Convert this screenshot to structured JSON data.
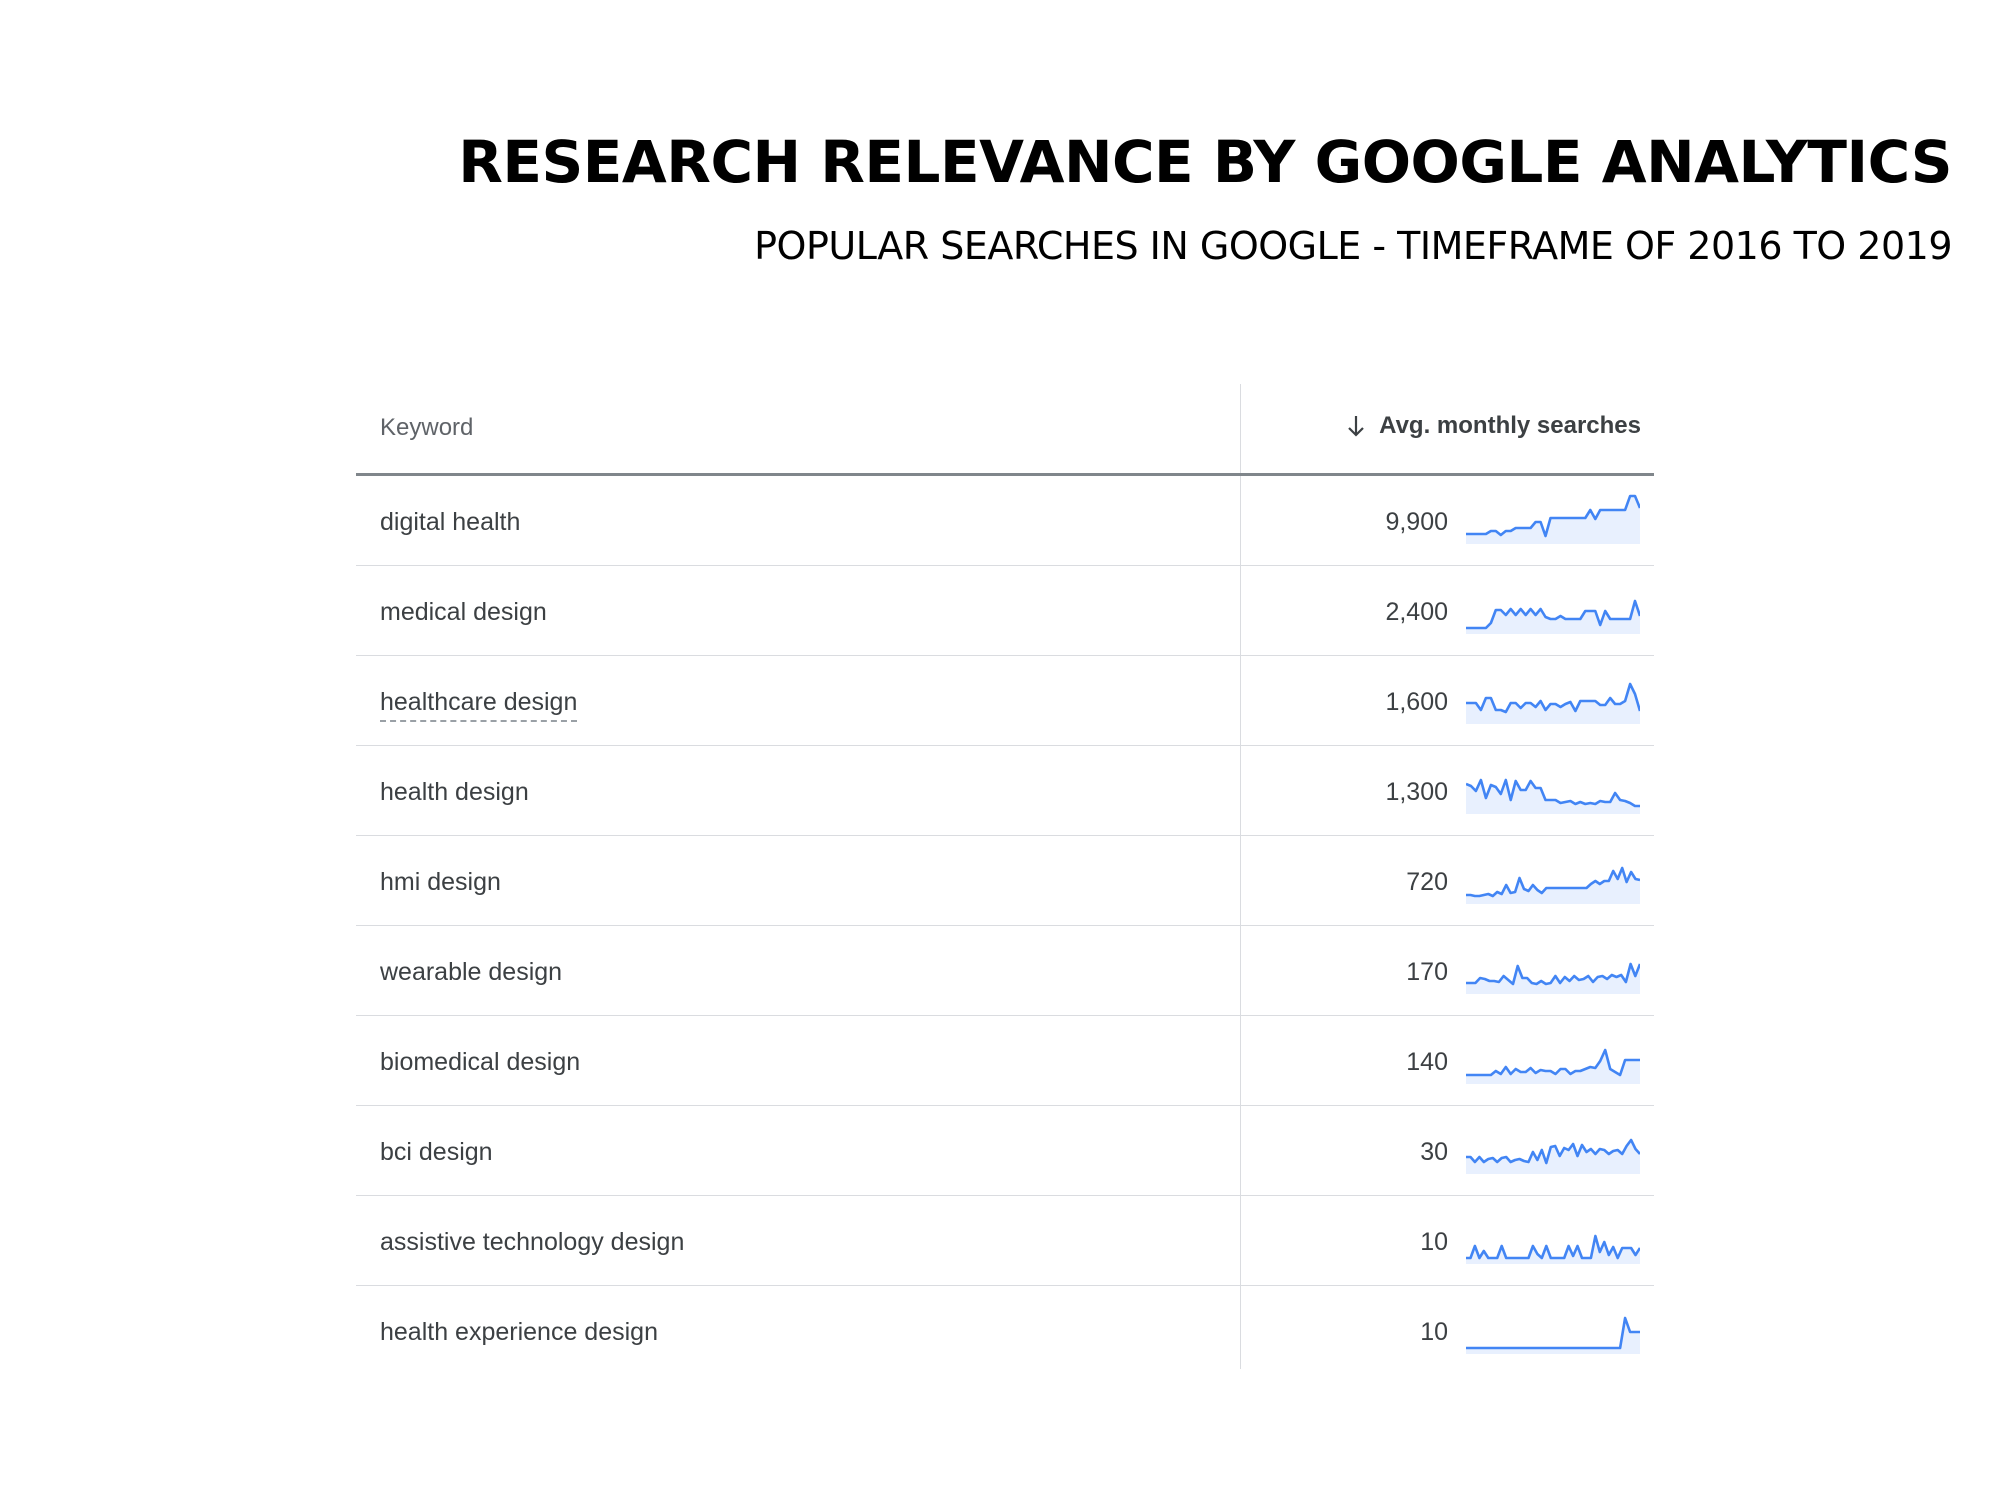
{
  "title": "RESEARCH RELEVANCE BY GOOGLE ANALYTICS",
  "subtitle": "POPULAR SEARCHES IN GOOGLE - TIMEFRAME OF 2016 TO 2019",
  "table": {
    "keyword_header": "Keyword",
    "value_header": "Avg. monthly searches",
    "sort_icon": "arrow-down-icon",
    "line_color": "#4285f4",
    "fill_color": "#e8f0fe",
    "rows": [
      {
        "keyword": "digital health",
        "searches": "9,900",
        "trend": [
          1,
          1,
          1,
          1,
          1,
          1.3,
          1.3,
          0.9,
          1.3,
          1.3,
          1.6,
          1.6,
          1.6,
          1.6,
          2.2,
          2.2,
          0.8,
          2.6,
          2.6,
          2.6,
          2.6,
          2.6,
          2.6,
          2.6,
          2.6,
          3.4,
          2.5,
          3.4,
          3.4,
          3.4,
          3.4,
          3.4,
          3.4,
          4.8,
          4.8,
          3.6
        ]
      },
      {
        "keyword": "medical design",
        "searches": "2,400",
        "trend": [
          0.6,
          0.6,
          0.6,
          0.6,
          0.6,
          1.1,
          2.4,
          2.4,
          1.9,
          2.5,
          1.9,
          2.5,
          1.9,
          2.5,
          1.9,
          2.5,
          1.7,
          1.5,
          1.5,
          1.8,
          1.5,
          1.5,
          1.5,
          1.5,
          2.3,
          2.3,
          2.3,
          0.9,
          2.3,
          1.5,
          1.5,
          1.5,
          1.5,
          1.5,
          3.3,
          1.8
        ]
      },
      {
        "keyword": "healthcare design",
        "searches": "1,600",
        "trend": [
          2.1,
          2.1,
          2.1,
          1.4,
          2.6,
          2.6,
          1.4,
          1.4,
          1.2,
          2.1,
          2.1,
          1.6,
          2.1,
          2.1,
          1.7,
          2.3,
          1.4,
          2,
          2,
          1.7,
          2,
          2.2,
          1.3,
          2.3,
          2.3,
          2.3,
          2.3,
          1.9,
          1.9,
          2.6,
          2,
          2,
          2.3,
          4,
          3,
          1.3
        ]
      },
      {
        "keyword": "health design",
        "searches": "1,300",
        "trend": [
          3,
          2.8,
          2.3,
          3.4,
          1.6,
          2.9,
          2.7,
          2,
          3.4,
          1.4,
          3.3,
          2.4,
          2.4,
          3.3,
          2.6,
          2.6,
          1.4,
          1.4,
          1.4,
          1.1,
          1.2,
          1.3,
          1,
          1.2,
          1,
          1.1,
          1,
          1.3,
          1.2,
          1.2,
          2.1,
          1.4,
          1.3,
          1.1,
          0.8,
          0.8
        ]
      },
      {
        "keyword": "hmi design",
        "searches": "720",
        "trend": [
          0.9,
          0.9,
          0.8,
          0.8,
          0.9,
          1,
          0.8,
          1.2,
          1,
          1.9,
          1.1,
          1.2,
          2.6,
          1.5,
          1.3,
          1.9,
          1.4,
          1.1,
          1.6,
          1.6,
          1.6,
          1.6,
          1.6,
          1.6,
          1.6,
          1.6,
          1.6,
          1.6,
          2,
          2.3,
          2,
          2.3,
          2.3,
          3.3,
          2.5,
          3.6,
          2.2,
          3.2,
          2.5,
          2.4
        ]
      },
      {
        "keyword": "wearable design",
        "searches": "170",
        "trend": [
          1.1,
          1.1,
          1.1,
          1.6,
          1.5,
          1.3,
          1.3,
          1.2,
          1.8,
          1.4,
          1,
          2.8,
          1.6,
          1.6,
          1.1,
          1,
          1.3,
          1,
          1.1,
          1.8,
          1.1,
          1.7,
          1.3,
          1.8,
          1.4,
          1.5,
          1.8,
          1.2,
          1.7,
          1.8,
          1.5,
          1.9,
          1.7,
          1.9,
          1.2,
          3,
          1.8,
          3
        ]
      },
      {
        "keyword": "biomedical design",
        "searches": "140",
        "trend": [
          0.9,
          0.9,
          0.9,
          0.9,
          0.9,
          0.9,
          1.3,
          1,
          1.7,
          1,
          1.5,
          1.2,
          1.2,
          1.6,
          1.1,
          1.4,
          1.3,
          1.3,
          1,
          1.5,
          1.5,
          1,
          1.3,
          1.3,
          1.5,
          1.7,
          1.6,
          2.3,
          3.4,
          1.5,
          1.2,
          0.9,
          2.4,
          2.4,
          2.4,
          2.4
        ]
      },
      {
        "keyword": "bci design",
        "searches": "30",
        "trend": [
          1.7,
          1.7,
          1.2,
          1.7,
          1.2,
          1.5,
          1.6,
          1.2,
          1.6,
          1.7,
          1.2,
          1.4,
          1.5,
          1.3,
          1.2,
          2.2,
          1.4,
          2.4,
          1.1,
          2.7,
          2.8,
          1.8,
          2.6,
          2.4,
          3,
          1.8,
          2.9,
          2.2,
          2.5,
          2,
          2.5,
          2.4,
          2,
          2.3,
          2.4,
          2,
          2.8,
          3.4,
          2.5,
          2
        ]
      },
      {
        "keyword": "assistive technology design",
        "searches": "10",
        "trend": [
          0.6,
          0.6,
          1.8,
          0.6,
          1.3,
          0.6,
          0.6,
          0.6,
          1.8,
          0.6,
          0.6,
          0.6,
          0.6,
          0.6,
          0.6,
          1.8,
          1,
          0.6,
          1.8,
          0.6,
          0.6,
          0.6,
          0.6,
          1.8,
          0.8,
          1.8,
          0.6,
          0.6,
          0.6,
          2.8,
          1.2,
          2.2,
          0.9,
          1.7,
          0.6,
          1.6,
          1.6,
          1.6,
          0.9,
          1.6
        ]
      },
      {
        "keyword": "health experience design",
        "searches": "10",
        "trend": [
          0.6,
          0.6,
          0.6,
          0.6,
          0.6,
          0.6,
          0.6,
          0.6,
          0.6,
          0.6,
          0.6,
          0.6,
          0.6,
          0.6,
          0.6,
          0.6,
          0.6,
          0.6,
          0.6,
          0.6,
          0.6,
          0.6,
          0.6,
          0.6,
          0.6,
          0.6,
          0.6,
          0.6,
          0.6,
          0.6,
          0.6,
          0.6,
          3.6,
          2.2,
          2.2,
          2.2
        ]
      }
    ]
  }
}
